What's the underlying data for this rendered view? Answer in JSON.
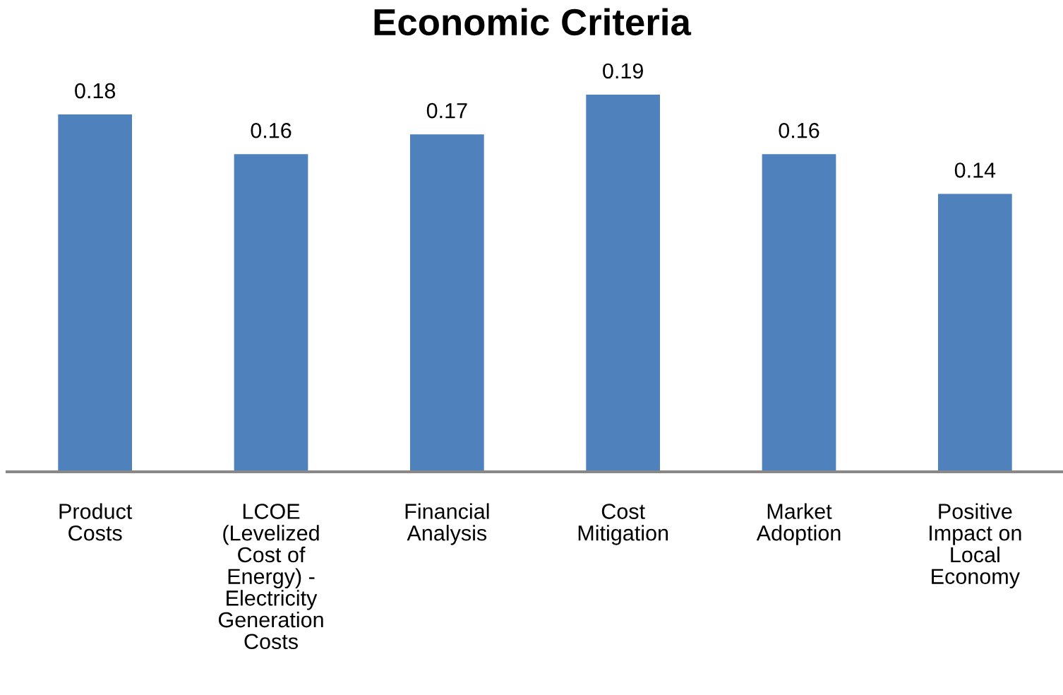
{
  "chart_data": {
    "type": "bar",
    "title": "Economic Criteria",
    "categories": [
      "Product\nCosts",
      "LCOE\n(Levelized\nCost of\nEnergy) -\nElectricity\nGeneration\nCosts",
      "Financial\nAnalysis",
      "Cost\nMitigation",
      "Market\nAdoption",
      "Positive\nImpact on\nLocal\nEconomy"
    ],
    "values": [
      0.18,
      0.16,
      0.17,
      0.19,
      0.16,
      0.14
    ],
    "color": "#4f81bd",
    "data_labels": true,
    "grid": false,
    "legend": false,
    "tick_labels": "x"
  }
}
